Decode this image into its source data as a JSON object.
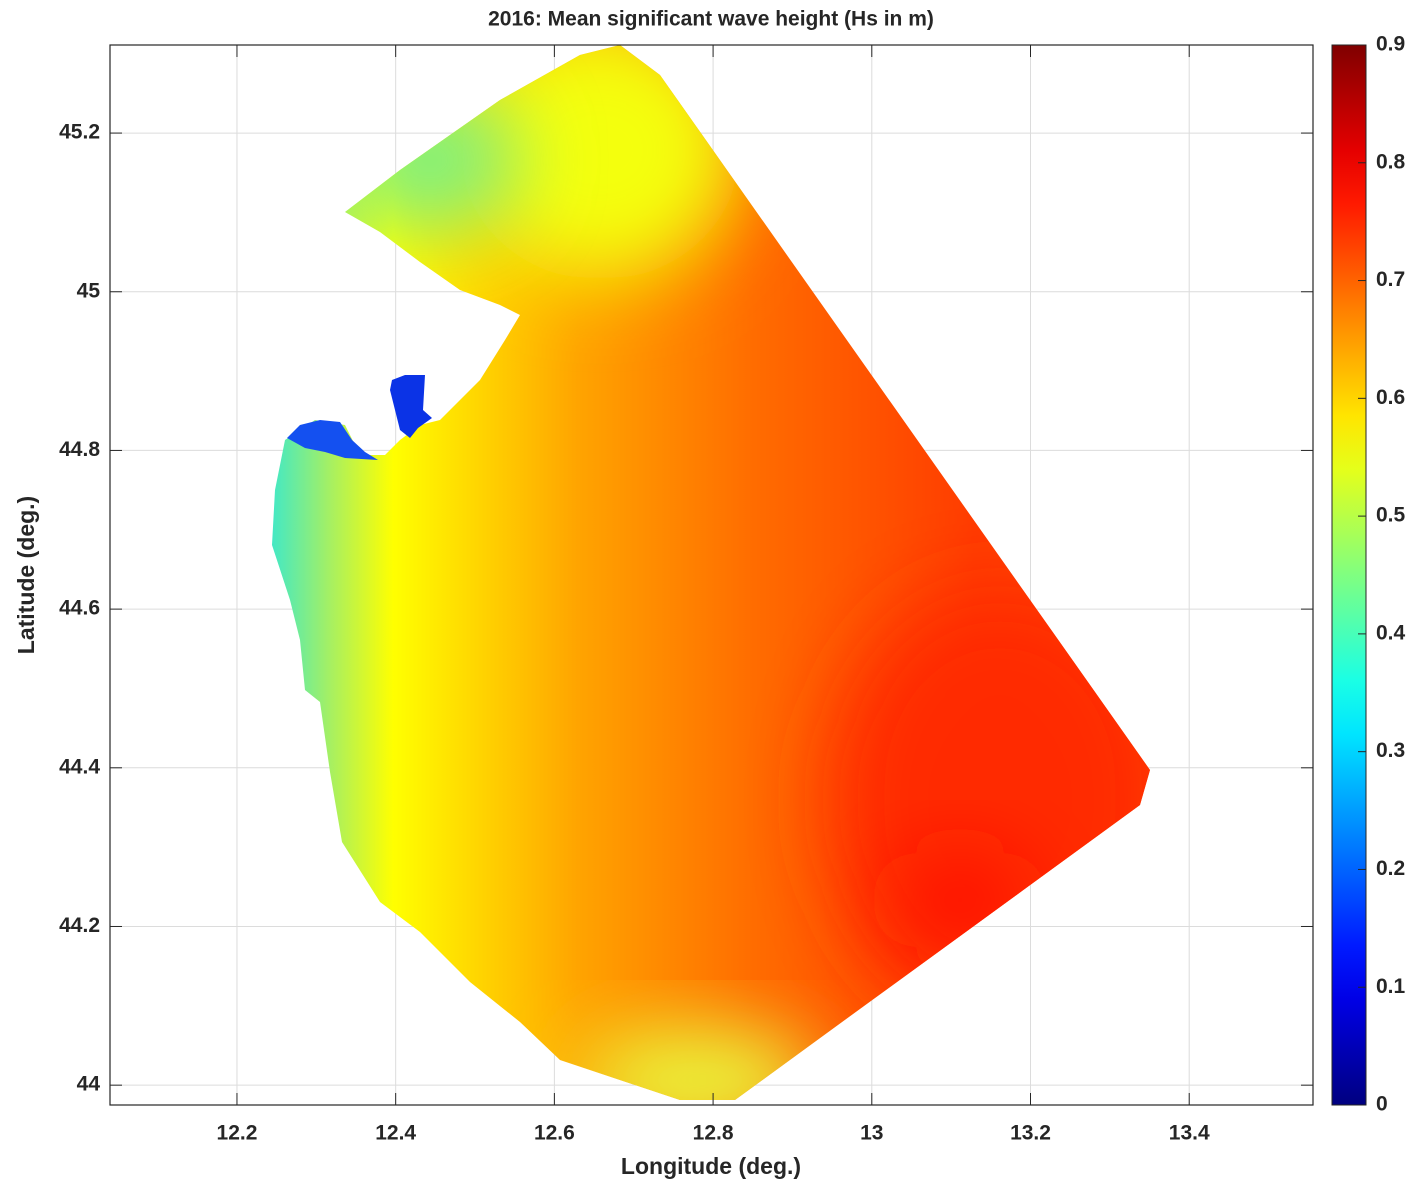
{
  "chart_data": {
    "type": "contour-map",
    "title": "2016: Mean significant wave height (Hs in m)",
    "x_label": "Longitude (deg.)",
    "y_label": "Latitude (deg.)",
    "xlim": [
      12.04,
      13.556
    ],
    "ylim": [
      43.975,
      45.311
    ],
    "xticks": [
      12.2,
      12.4,
      12.6,
      12.8,
      13,
      13.2,
      13.4
    ],
    "yticks": [
      44,
      44.2,
      44.4,
      44.6,
      44.8,
      45,
      45.2
    ],
    "grid": true,
    "colorbar": {
      "colormap": "jet",
      "clim": [
        0,
        0.9
      ],
      "ticks": [
        0,
        0.1,
        0.2,
        0.3,
        0.4,
        0.5,
        0.6,
        0.7,
        0.8,
        0.9
      ]
    }
  }
}
